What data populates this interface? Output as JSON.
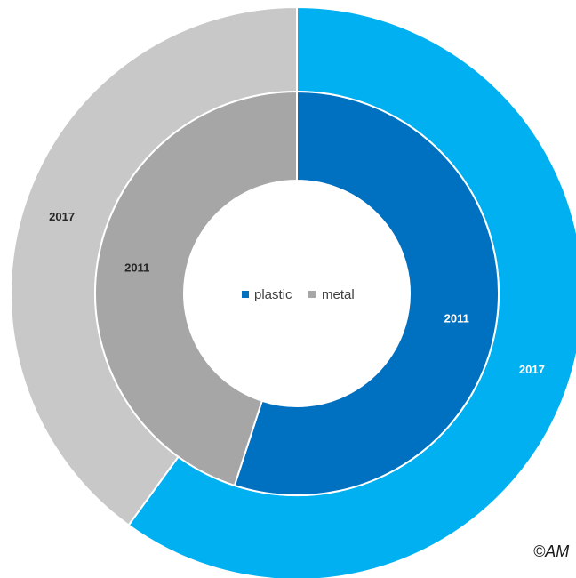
{
  "chart_data": {
    "type": "pie",
    "subtype": "doughnut",
    "legend": [
      {
        "label": "plastic",
        "color": "#0070c0"
      },
      {
        "label": "metal",
        "color": "#a6a6a6"
      }
    ],
    "legend_position": "center",
    "rings": [
      {
        "name": "2017",
        "label": "2017",
        "values": [
          {
            "category": "plastic",
            "value": 60
          },
          {
            "category": "metal",
            "value": 40
          }
        ],
        "colors": {
          "plastic": "#00b0f0",
          "metal": "#c8c8c8"
        },
        "label_colors": {
          "plastic": "#ffffff",
          "metal": "#262626"
        }
      },
      {
        "name": "2011",
        "label": "2011",
        "values": [
          {
            "category": "plastic",
            "value": 55
          },
          {
            "category": "metal",
            "value": 45
          }
        ],
        "colors": {
          "plastic": "#0070c0",
          "metal": "#a6a6a6"
        },
        "label_colors": {
          "plastic": "#ffffff",
          "metal": "#262626"
        }
      }
    ]
  },
  "footer": {
    "copyright": "©AM"
  }
}
